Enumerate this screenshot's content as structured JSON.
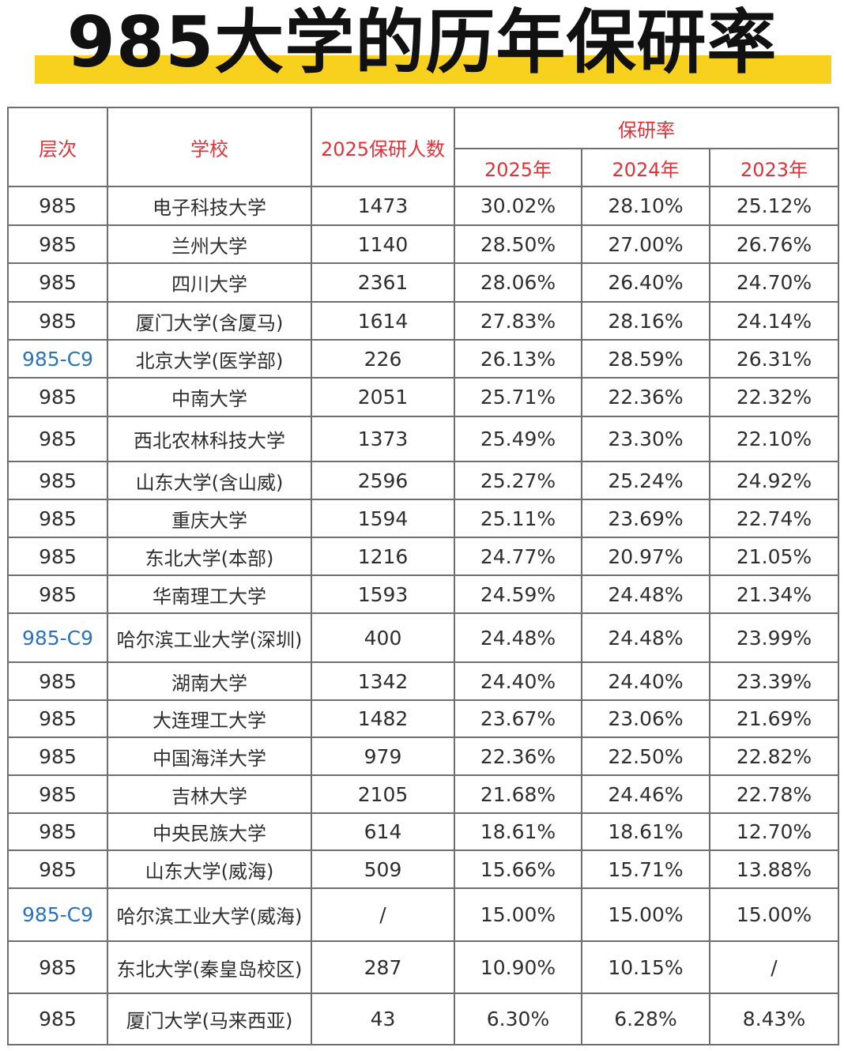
{
  "title": "985大学的历年保研率",
  "headers": {
    "tier": "层次",
    "school": "学校",
    "count": "2025保研人数",
    "rate_group": "保研率",
    "years": [
      "2025年",
      "2024年",
      "2023年"
    ]
  },
  "colors": {
    "header_text": "#e1323a",
    "c9_text": "#2c73b8",
    "title_bar": "#f7d11e"
  },
  "rows": [
    {
      "tier": "985",
      "school": "电子科技大学",
      "count": "1473",
      "r2025": "30.02%",
      "r2024": "28.10%",
      "r2023": "25.12%"
    },
    {
      "tier": "985",
      "school": "兰州大学",
      "count": "1140",
      "r2025": "28.50%",
      "r2024": "27.00%",
      "r2023": "26.76%"
    },
    {
      "tier": "985",
      "school": "四川大学",
      "count": "2361",
      "r2025": "28.06%",
      "r2024": "26.40%",
      "r2023": "24.70%"
    },
    {
      "tier": "985",
      "school": "厦门大学(含厦马)",
      "count": "1614",
      "r2025": "27.83%",
      "r2024": "28.16%",
      "r2023": "24.14%"
    },
    {
      "tier": "985-C9",
      "school": "北京大学(医学部)",
      "count": "226",
      "r2025": "26.13%",
      "r2024": "28.59%",
      "r2023": "26.31%"
    },
    {
      "tier": "985",
      "school": "中南大学",
      "count": "2051",
      "r2025": "25.71%",
      "r2024": "22.36%",
      "r2023": "22.32%"
    },
    {
      "tier": "985",
      "school": "西北农林科技大学",
      "count": "1373",
      "r2025": "25.49%",
      "r2024": "23.30%",
      "r2023": "22.10%"
    },
    {
      "tier": "985",
      "school": "山东大学(含山威)",
      "count": "2596",
      "r2025": "25.27%",
      "r2024": "25.24%",
      "r2023": "24.92%"
    },
    {
      "tier": "985",
      "school": "重庆大学",
      "count": "1594",
      "r2025": "25.11%",
      "r2024": "23.69%",
      "r2023": "22.74%"
    },
    {
      "tier": "985",
      "school": "东北大学(本部)",
      "count": "1216",
      "r2025": "24.77%",
      "r2024": "20.97%",
      "r2023": "21.05%"
    },
    {
      "tier": "985",
      "school": "华南理工大学",
      "count": "1593",
      "r2025": "24.59%",
      "r2024": "24.48%",
      "r2023": "21.34%"
    },
    {
      "tier": "985-C9",
      "school": "哈尔滨工业大学(深圳)",
      "count": "400",
      "r2025": "24.48%",
      "r2024": "24.48%",
      "r2023": "23.99%"
    },
    {
      "tier": "985",
      "school": "湖南大学",
      "count": "1342",
      "r2025": "24.40%",
      "r2024": "24.40%",
      "r2023": "23.39%"
    },
    {
      "tier": "985",
      "school": "大连理工大学",
      "count": "1482",
      "r2025": "23.67%",
      "r2024": "23.06%",
      "r2023": "21.69%"
    },
    {
      "tier": "985",
      "school": "中国海洋大学",
      "count": "979",
      "r2025": "22.36%",
      "r2024": "22.50%",
      "r2023": "22.82%"
    },
    {
      "tier": "985",
      "school": "吉林大学",
      "count": "2105",
      "r2025": "21.68%",
      "r2024": "24.46%",
      "r2023": "22.78%"
    },
    {
      "tier": "985",
      "school": "中央民族大学",
      "count": "614",
      "r2025": "18.61%",
      "r2024": "18.61%",
      "r2023": "12.70%"
    },
    {
      "tier": "985",
      "school": "山东大学(威海)",
      "count": "509",
      "r2025": "15.66%",
      "r2024": "15.71%",
      "r2023": "13.88%"
    },
    {
      "tier": "985-C9",
      "school": "哈尔滨工业大学(威海)",
      "count": "/",
      "r2025": "15.00%",
      "r2024": "15.00%",
      "r2023": "15.00%"
    },
    {
      "tier": "985",
      "school": "东北大学(秦皇岛校区)",
      "count": "287",
      "r2025": "10.90%",
      "r2024": "10.15%",
      "r2023": "/"
    },
    {
      "tier": "985",
      "school": "厦门大学(马来西亚)",
      "count": "43",
      "r2025": "6.30%",
      "r2024": "6.28%",
      "r2023": "8.43%"
    }
  ]
}
